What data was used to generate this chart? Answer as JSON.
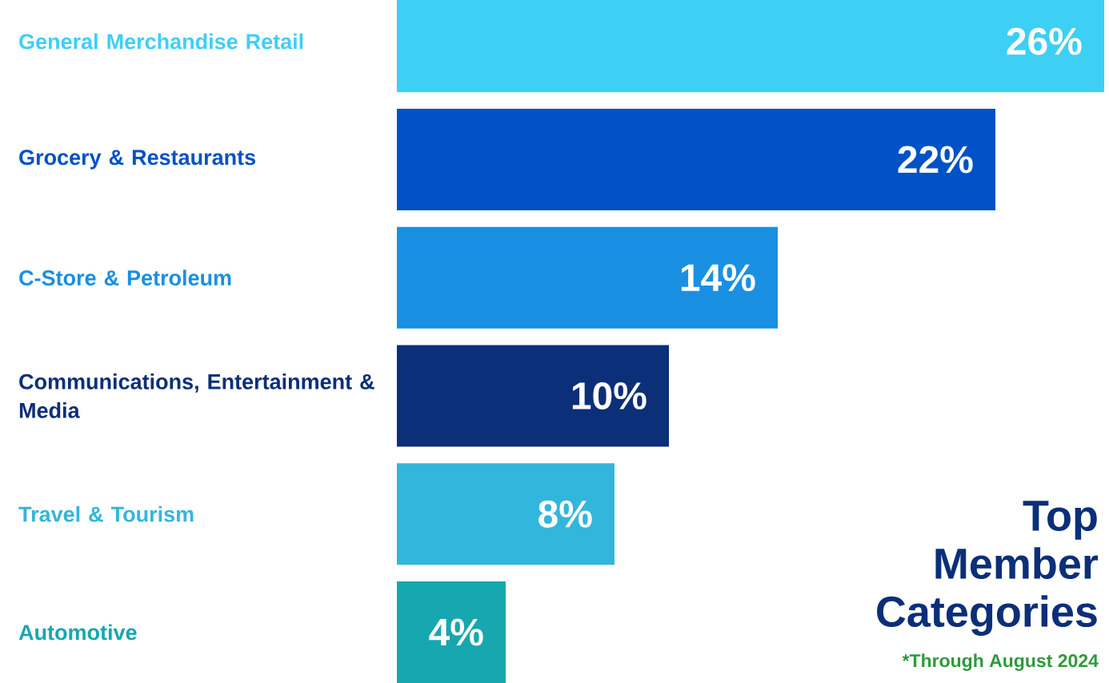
{
  "chart_data": {
    "type": "bar",
    "orientation": "horizontal",
    "title": "Top Member Categories",
    "categories": [
      "General Merchandise Retail",
      "Grocery & Restaurants",
      "C-Store & Petroleum",
      "Communications, Entertainment & Media",
      "Travel & Tourism",
      "Automotive"
    ],
    "values": [
      26,
      22,
      14,
      10,
      8,
      4
    ],
    "value_labels": [
      "26%",
      "22%",
      "14%",
      "10%",
      "8%",
      "4%"
    ],
    "colors": [
      "#3ecff5",
      "#0052c6",
      "#1a90e2",
      "#0b2f78",
      "#33b6dc",
      "#17a7ae"
    ],
    "annotations": [
      "*Through August 2024"
    ]
  }
}
